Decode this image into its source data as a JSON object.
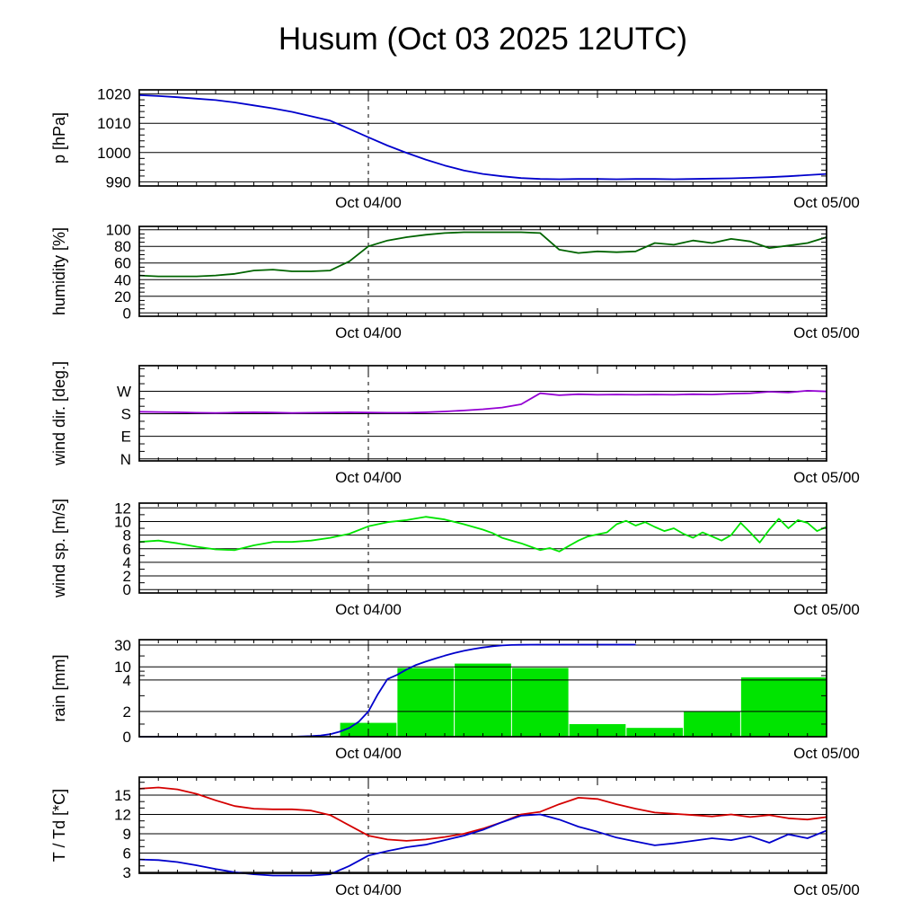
{
  "title": "Husum (Oct 03 2025 12UTC)",
  "colors": {
    "axis": "#000000",
    "pressure": "#0000cc",
    "humidity": "#006400",
    "wind_dir": "#9400d3",
    "wind_speed": "#00e400",
    "rain_bars": "#00e400",
    "rain_accum": "#0000cc",
    "temperature": "#d40000",
    "dewpoint": "#0000cc"
  },
  "chart_data": {
    "type": "line",
    "title": "Husum (Oct 03 2025 12UTC)",
    "x_axis": {
      "hours_total": 36,
      "tick_labels": [
        {
          "hour": 12,
          "text": "Oct 04/00"
        },
        {
          "hour": 36,
          "text": "Oct 05/00"
        }
      ],
      "major_tick_hours": [
        12,
        24
      ],
      "minor_tick_step_hours": 1,
      "dashed_marker_hour": 12
    },
    "panels": [
      {
        "id": "pressure",
        "ylabel": "p [hPa]",
        "ymin": 988.6,
        "ymax": 1021.4,
        "yticks": [
          990,
          1000,
          1010,
          1020
        ],
        "ytick_labels": [
          "990",
          "1000",
          "1010",
          "1020"
        ],
        "minor_tick_step": 2,
        "series": [
          {
            "name": "pressure",
            "color": "#0000cc",
            "x0": 0,
            "dx": 1,
            "y": [
              1019.6,
              1019.3,
              1018.9,
              1018.4,
              1017.9,
              1017.1,
              1016.1,
              1015.1,
              1013.9,
              1012.4,
              1010.9,
              1008.1,
              1005.2,
              1002.4,
              999.9,
              997.6,
              995.6,
              993.9,
              992.7,
              991.9,
              991.3,
              991.0,
              990.9,
              991.0,
              991.0,
              990.9,
              991.0,
              991.0,
              990.9,
              991.0,
              991.1,
              991.2,
              991.4,
              991.6,
              991.9,
              992.3,
              992.7
            ]
          }
        ]
      },
      {
        "id": "humidity",
        "ylabel": "humidity [%]",
        "ymin": -4,
        "ymax": 104,
        "yticks": [
          0,
          20,
          40,
          60,
          80,
          100
        ],
        "ytick_labels": [
          "0",
          "20",
          "40",
          "60",
          "80",
          "100"
        ],
        "minor_tick_step": 5,
        "series": [
          {
            "name": "humidity",
            "color": "#006400",
            "x0": 0,
            "dx": 1,
            "y": [
              45,
              44,
              44,
              44,
              45,
              47,
              51,
              52,
              50,
              50,
              51,
              62,
              80,
              87,
              91,
              94,
              96,
              97,
              97,
              97,
              97,
              96,
              76,
              72,
              74,
              73,
              74,
              84,
              82,
              87,
              84,
              89,
              86,
              78,
              81,
              84,
              91
            ]
          }
        ]
      },
      {
        "id": "wind-direction",
        "ylabel": "wind dir. [deg.]",
        "ymin": -8,
        "ymax": 372,
        "yticks": [
          0,
          90,
          180,
          270
        ],
        "ytick_labels": [
          "N",
          "E",
          "S",
          "W"
        ],
        "minor_tick_step": 30,
        "series": [
          {
            "name": "wind-direction",
            "color": "#9400d3",
            "x0": 0,
            "dx": 1,
            "y": [
              188,
              187,
              186,
              184,
              183,
              185,
              186,
              185,
              183,
              184,
              185,
              186,
              185,
              184,
              184,
              186,
              189,
              193,
              198,
              205,
              218,
              262,
              254,
              258,
              256,
              257,
              256,
              257,
              256,
              258,
              257,
              260,
              262,
              268,
              265,
              272,
              269
            ]
          }
        ]
      },
      {
        "id": "wind-speed",
        "ylabel": "wind sp. [m/s]",
        "ymin": -0.5,
        "ymax": 12.7,
        "yticks": [
          0,
          2,
          4,
          6,
          8,
          10,
          12
        ],
        "ytick_labels": [
          "0",
          "2",
          "4",
          "6",
          "8",
          "10",
          "12"
        ],
        "minor_tick_step": 1,
        "series": [
          {
            "name": "wind-speed",
            "color": "#00e400",
            "x": [
              0,
              1,
              2,
              3,
              4,
              5,
              6,
              7,
              8,
              9,
              10,
              11,
              12,
              13,
              14,
              15,
              16,
              17,
              18,
              18.5,
              19,
              19.5,
              20,
              20.5,
              21,
              21.5,
              22,
              22.5,
              23,
              23.5,
              24,
              24.5,
              25,
              25.5,
              26,
              26.5,
              27,
              27.5,
              28,
              28.5,
              29,
              29.5,
              30,
              30.5,
              31,
              31.5,
              32,
              32.5,
              33,
              33.5,
              34,
              34.5,
              35,
              35.5,
              36
            ],
            "y": [
              7.0,
              7.2,
              6.8,
              6.3,
              5.9,
              5.8,
              6.5,
              7.0,
              7.0,
              7.2,
              7.6,
              8.2,
              9.3,
              9.9,
              10.2,
              10.7,
              10.3,
              9.6,
              8.8,
              8.3,
              7.6,
              7.2,
              6.8,
              6.3,
              5.8,
              6.1,
              5.6,
              6.4,
              7.2,
              7.8,
              8.1,
              8.4,
              9.6,
              10.1,
              9.4,
              9.9,
              9.2,
              8.6,
              9.0,
              8.2,
              7.6,
              8.4,
              7.8,
              7.2,
              8.0,
              9.8,
              8.4,
              6.9,
              8.8,
              10.4,
              9.0,
              10.2,
              9.8,
              8.6,
              9.2
            ]
          }
        ]
      },
      {
        "id": "rain",
        "ylabel": "rain [mm]",
        "scale": "piecewise",
        "scale_points": [
          [
            0,
            0
          ],
          [
            2,
            0.26
          ],
          [
            4,
            0.585
          ],
          [
            10,
            0.72
          ],
          [
            30,
            0.945
          ],
          [
            45,
            1
          ]
        ],
        "yticks": [
          0,
          2,
          4,
          10,
          30
        ],
        "ytick_labels": [
          "0",
          "2",
          "4",
          "10",
          "30"
        ],
        "minor_ticks": [
          1,
          3,
          6,
          8,
          20
        ],
        "bars": {
          "color": "#00e400",
          "bins": [
            {
              "t0": 10.5,
              "t1": 13.5,
              "mm": 1.1
            },
            {
              "t0": 13.5,
              "t1": 16.5,
              "mm": 9.5
            },
            {
              "t0": 16.5,
              "t1": 19.5,
              "mm": 13.0
            },
            {
              "t0": 19.5,
              "t1": 22.5,
              "mm": 9.5
            },
            {
              "t0": 22.5,
              "t1": 25.5,
              "mm": 1.0
            },
            {
              "t0": 25.5,
              "t1": 28.5,
              "mm": 0.7
            },
            {
              "t0": 28.5,
              "t1": 31.5,
              "mm": 2.0
            },
            {
              "t0": 31.5,
              "t1": 36.0,
              "mm": 5.2
            }
          ]
        },
        "series": [
          {
            "name": "rain-accumulated",
            "color": "#0000cc",
            "x": [
              0,
              8,
              9,
              9.5,
              10,
              10.5,
              11,
              11.5,
              12,
              12.5,
              13,
              13.5,
              14,
              14.5,
              15,
              15.5,
              16,
              16.5,
              17,
              17.5,
              18,
              18.5,
              19,
              19.5,
              20,
              21,
              22,
              23,
              24,
              25,
              26
            ],
            "y": [
              0,
              0,
              0.05,
              0.1,
              0.2,
              0.4,
              0.7,
              1.2,
              2.0,
              3.1,
              4.4,
              6.3,
              8.8,
              11.8,
              14.8,
              17.6,
              20.2,
              22.6,
              24.7,
              26.3,
              27.7,
              28.8,
              29.6,
              30.2,
              30.6,
              31.0,
              31.1,
              31.2,
              31.2,
              31.2,
              31.2
            ]
          }
        ]
      },
      {
        "id": "temperature",
        "ylabel": "T / Td [*C]",
        "ymin": 2.85,
        "ymax": 17.8,
        "yticks": [
          3,
          6,
          9,
          12,
          15
        ],
        "ytick_labels": [
          "3",
          "6",
          "9",
          "12",
          "15"
        ],
        "minor_tick_step": 1,
        "series": [
          {
            "name": "temperature",
            "color": "#d40000",
            "x0": 0,
            "dx": 1,
            "y": [
              16.0,
              16.2,
              15.9,
              15.2,
              14.2,
              13.3,
              12.9,
              12.8,
              12.8,
              12.6,
              11.9,
              10.3,
              8.7,
              8.1,
              7.9,
              8.1,
              8.5,
              9.0,
              9.8,
              10.8,
              12.0,
              12.4,
              13.6,
              14.6,
              14.4,
              13.6,
              12.9,
              12.3,
              12.1,
              11.9,
              11.7,
              12.0,
              11.6,
              11.9,
              11.4,
              11.2,
              11.6
            ]
          },
          {
            "name": "dewpoint",
            "color": "#0000cc",
            "x0": 0,
            "dx": 1,
            "y": [
              5.0,
              4.9,
              4.6,
              4.1,
              3.5,
              3.0,
              2.7,
              2.5,
              2.5,
              2.5,
              2.7,
              4.0,
              5.6,
              6.3,
              6.9,
              7.3,
              8.0,
              8.7,
              9.6,
              10.8,
              11.8,
              12.0,
              11.2,
              10.1,
              9.3,
              8.4,
              7.8,
              7.2,
              7.5,
              7.9,
              8.3,
              8.0,
              8.6,
              7.6,
              8.9,
              8.3,
              9.5
            ]
          }
        ]
      }
    ]
  }
}
